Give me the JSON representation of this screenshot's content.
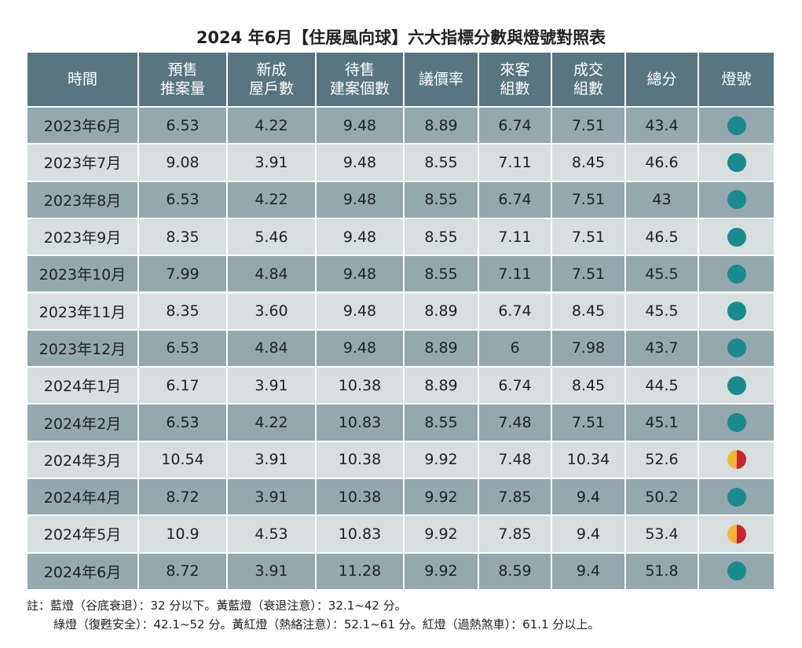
{
  "title": "2024 年6月【住展風向球】六大指標分數與燈號對照表",
  "table": {
    "header": [
      [
        "時間"
      ],
      [
        "預售",
        "推案量"
      ],
      [
        "新成",
        "屋戶數"
      ],
      [
        "待售",
        "建案個數"
      ],
      [
        "議價率"
      ],
      [
        "來客",
        "組數"
      ],
      [
        "成交",
        "組數"
      ],
      [
        "總分"
      ],
      [
        "燈號"
      ]
    ],
    "rows": [
      [
        "2023年6月",
        "6.53",
        "4.22",
        "9.48",
        "8.89",
        "6.74",
        "7.51",
        "43.4"
      ],
      [
        "2023年7月",
        "9.08",
        "3.91",
        "9.48",
        "8.55",
        "7.11",
        "8.45",
        "46.6"
      ],
      [
        "2023年8月",
        "6.53",
        "4.22",
        "9.48",
        "8.55",
        "6.74",
        "7.51",
        "43"
      ],
      [
        "2023年9月",
        "8.35",
        "5.46",
        "9.48",
        "8.55",
        "7.11",
        "7.51",
        "46.5"
      ],
      [
        "2023年10月",
        "7.99",
        "4.84",
        "9.48",
        "8.55",
        "7.11",
        "7.51",
        "45.5"
      ],
      [
        "2023年11月",
        "8.35",
        "3.60",
        "9.48",
        "8.89",
        "6.74",
        "8.45",
        "45.5"
      ],
      [
        "2023年12月",
        "6.53",
        "4.84",
        "9.48",
        "8.89",
        "6",
        "7.98",
        "43.7"
      ],
      [
        "2024年1月",
        "6.17",
        "3.91",
        "10.38",
        "8.89",
        "6.74",
        "8.45",
        "44.5"
      ],
      [
        "2024年2月",
        "6.53",
        "4.22",
        "10.83",
        "8.55",
        "7.48",
        "7.51",
        "45.1"
      ],
      [
        "2024年3月",
        "10.54",
        "3.91",
        "10.38",
        "9.92",
        "7.48",
        "10.34",
        "52.6"
      ],
      [
        "2024年4月",
        "8.72",
        "3.91",
        "10.38",
        "9.92",
        "7.85",
        "9.4",
        "50.2"
      ],
      [
        "2024年5月",
        "10.9",
        "4.53",
        "10.83",
        "9.92",
        "7.85",
        "9.4",
        "53.4"
      ],
      [
        "2024年6月",
        "8.72",
        "3.91",
        "11.28",
        "9.92",
        "8.59",
        "9.4",
        "51.8"
      ]
    ],
    "lights": [
      [
        "#1a8a8e"
      ],
      [
        "#1a8a8e"
      ],
      [
        "#1a8a8e"
      ],
      [
        "#1a8a8e"
      ],
      [
        "#1a8a8e"
      ],
      [
        "#1a8a8e"
      ],
      [
        "#1a8a8e"
      ],
      [
        "#1a8a8e"
      ],
      [
        "#1a8a8e"
      ],
      [
        "#f2b53a",
        "#c4272d"
      ],
      [
        "#1a8a8e"
      ],
      [
        "#f2b53a",
        "#c4272d"
      ],
      [
        "#1a8a8e"
      ]
    ]
  },
  "notes": [
    "註：藍燈（谷底衰退）：32 分以下。黃藍燈（衰退注意）：32.1~42 分。",
    "綠燈（復甦安全）：42.1~52 分。黃紅燈（熱絡注意）：52.1~61 分。紅燈（過熱煞車）：61.1 分以上。"
  ]
}
